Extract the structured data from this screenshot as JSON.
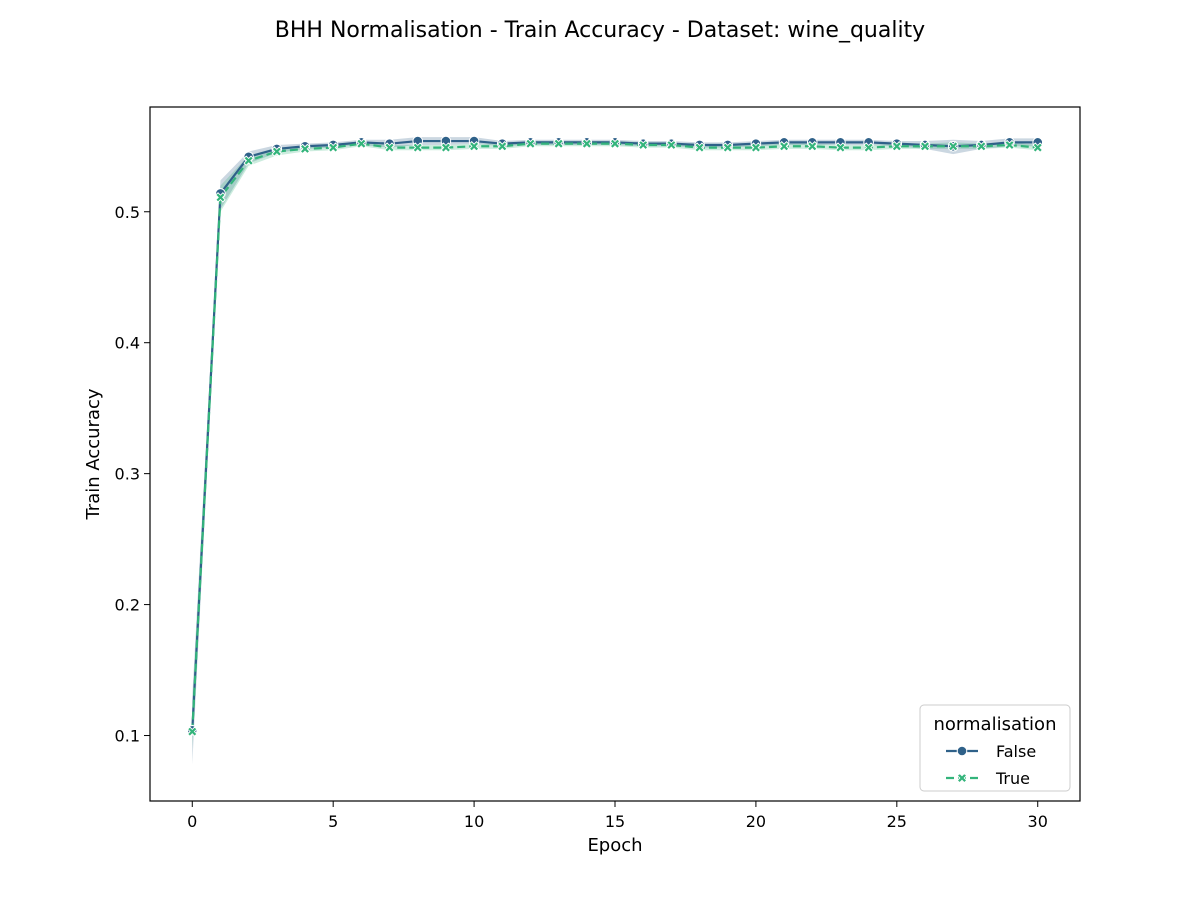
{
  "chart_data": {
    "type": "line",
    "title": "BHH Normalisation - Train Accuracy - Dataset: wine_quality",
    "xlabel": "Epoch",
    "ylabel": "Train Accuracy",
    "xlim": [
      -1.5,
      31.5
    ],
    "ylim": [
      0.05,
      0.58
    ],
    "xticks": [
      0,
      5,
      10,
      15,
      20,
      25,
      30
    ],
    "yticks": [
      0.1,
      0.2,
      0.3,
      0.4,
      0.5
    ],
    "grid": false,
    "legend": {
      "title": "normalisation",
      "placement": "bottom-right"
    },
    "x": [
      0,
      1,
      2,
      3,
      4,
      5,
      6,
      7,
      8,
      9,
      10,
      11,
      12,
      13,
      14,
      15,
      16,
      17,
      18,
      19,
      20,
      21,
      22,
      23,
      24,
      25,
      26,
      27,
      28,
      29,
      30
    ],
    "series": [
      {
        "name": "False",
        "color": "#2f6189",
        "marker": "circle",
        "dash": "solid",
        "values": [
          0.104,
          0.514,
          0.542,
          0.548,
          0.55,
          0.551,
          0.553,
          0.552,
          0.554,
          0.554,
          0.554,
          0.552,
          0.553,
          0.553,
          0.553,
          0.553,
          0.552,
          0.552,
          0.551,
          0.551,
          0.552,
          0.553,
          0.553,
          0.553,
          0.553,
          0.552,
          0.551,
          0.55,
          0.551,
          0.553,
          0.553
        ],
        "lower": [
          0.078,
          0.502,
          0.537,
          0.545,
          0.548,
          0.549,
          0.551,
          0.549,
          0.551,
          0.551,
          0.552,
          0.55,
          0.551,
          0.551,
          0.551,
          0.551,
          0.55,
          0.55,
          0.549,
          0.549,
          0.55,
          0.551,
          0.551,
          0.551,
          0.551,
          0.55,
          0.548,
          0.544,
          0.548,
          0.55,
          0.55
        ],
        "upper": [
          0.13,
          0.524,
          0.546,
          0.551,
          0.552,
          0.553,
          0.555,
          0.555,
          0.557,
          0.557,
          0.557,
          0.554,
          0.555,
          0.555,
          0.555,
          0.555,
          0.554,
          0.554,
          0.553,
          0.553,
          0.554,
          0.555,
          0.555,
          0.555,
          0.555,
          0.554,
          0.554,
          0.555,
          0.554,
          0.556,
          0.556
        ]
      },
      {
        "name": "True",
        "color": "#33b47b",
        "marker": "x",
        "dash": "dashed",
        "values": [
          0.103,
          0.511,
          0.539,
          0.546,
          0.548,
          0.549,
          0.552,
          0.549,
          0.549,
          0.549,
          0.55,
          0.55,
          0.552,
          0.552,
          0.552,
          0.552,
          0.551,
          0.551,
          0.549,
          0.549,
          0.549,
          0.55,
          0.55,
          0.549,
          0.549,
          0.55,
          0.55,
          0.55,
          0.55,
          0.551,
          0.549
        ],
        "lower": [
          0.09,
          0.5,
          0.535,
          0.543,
          0.546,
          0.547,
          0.55,
          0.547,
          0.547,
          0.547,
          0.548,
          0.548,
          0.55,
          0.55,
          0.55,
          0.55,
          0.549,
          0.549,
          0.547,
          0.547,
          0.547,
          0.548,
          0.548,
          0.547,
          0.547,
          0.548,
          0.548,
          0.548,
          0.548,
          0.549,
          0.547
        ],
        "upper": [
          0.116,
          0.52,
          0.543,
          0.549,
          0.55,
          0.551,
          0.554,
          0.551,
          0.551,
          0.551,
          0.552,
          0.552,
          0.554,
          0.554,
          0.554,
          0.554,
          0.553,
          0.553,
          0.551,
          0.551,
          0.551,
          0.552,
          0.552,
          0.551,
          0.551,
          0.552,
          0.552,
          0.553,
          0.552,
          0.553,
          0.551
        ]
      }
    ]
  }
}
